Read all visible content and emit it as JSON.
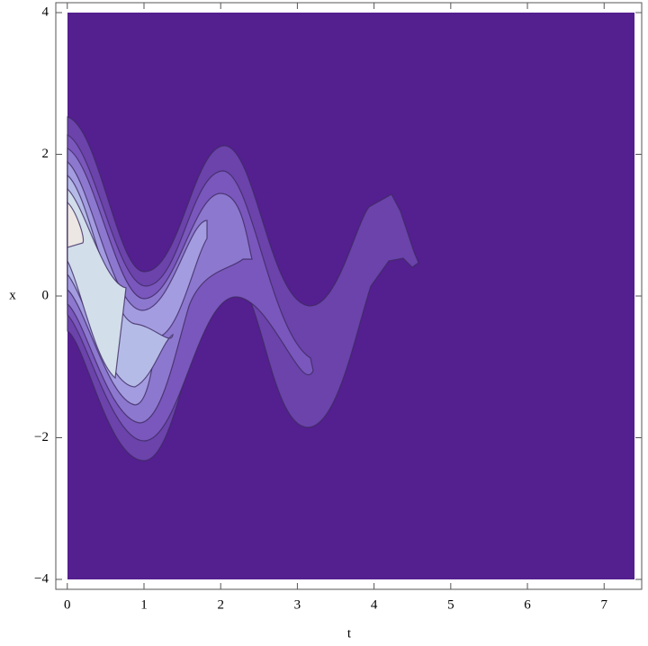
{
  "chart_data": {
    "type": "contour",
    "xlabel": "t",
    "ylabel": "x",
    "xlim": [
      -0.15,
      7.49
    ],
    "ylim": [
      -4.14,
      4.14
    ],
    "xticks": [
      0,
      1,
      2,
      3,
      4,
      5,
      6,
      7
    ],
    "yticks": [
      {
        "value": -4,
        "label": "−4"
      },
      {
        "value": -2,
        "label": "−2"
      },
      0,
      2,
      4
    ]
  }
}
